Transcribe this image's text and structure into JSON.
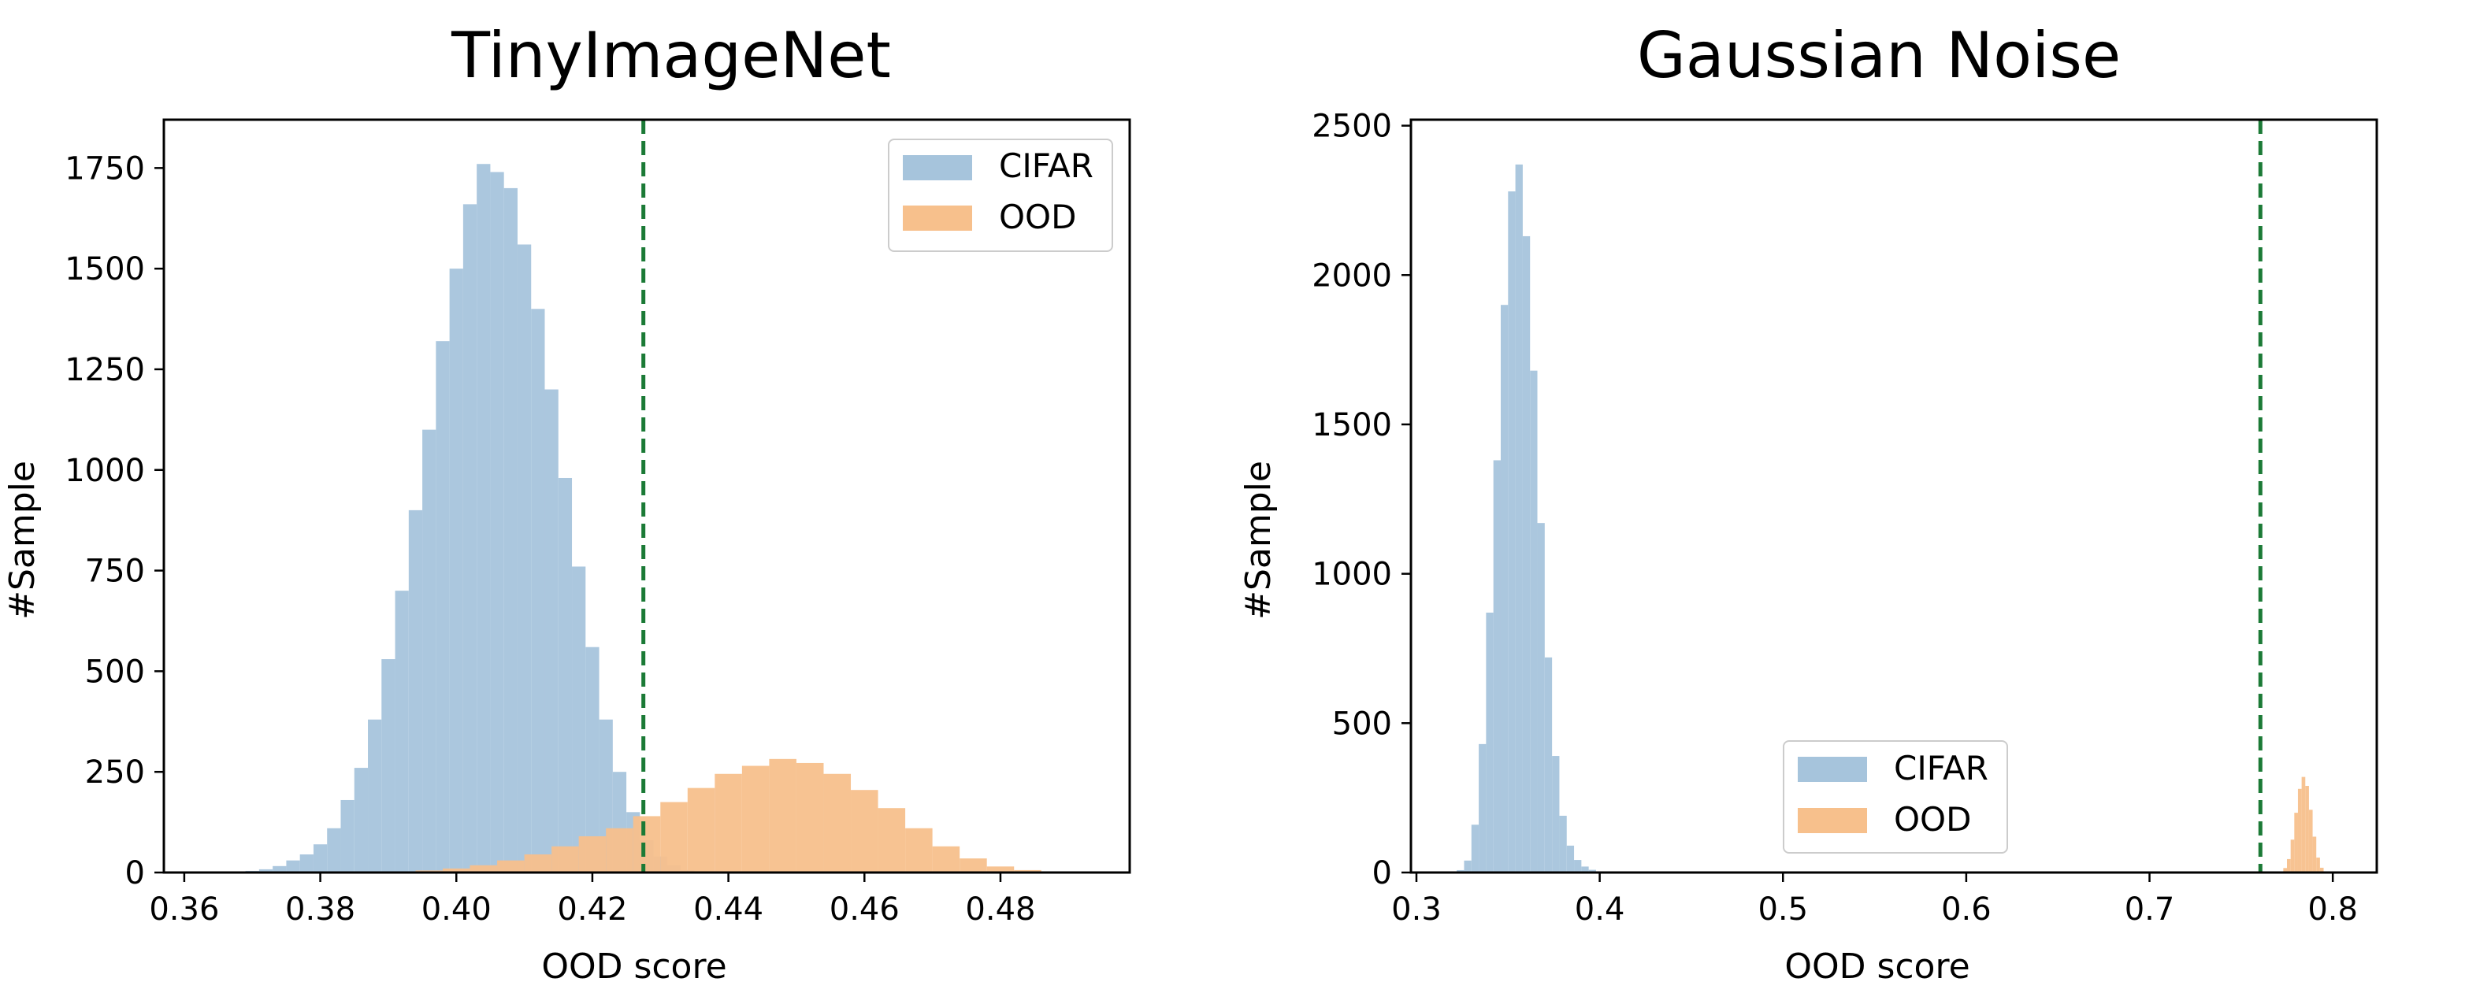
{
  "chart_data": [
    {
      "type": "histogram",
      "title": "TinyImageNet",
      "xlabel": "OOD score",
      "ylabel": "#Sample",
      "xlim": [
        0.357,
        0.499
      ],
      "ylim": [
        0,
        1870
      ],
      "xticks": [
        0.36,
        0.38,
        0.4,
        0.42,
        0.44,
        0.46,
        0.48
      ],
      "xtick_labels": [
        "0.36",
        "0.38",
        "0.40",
        "0.42",
        "0.44",
        "0.46",
        "0.48"
      ],
      "yticks": [
        0,
        250,
        500,
        750,
        1000,
        1250,
        1500,
        1750
      ],
      "ytick_labels": [
        "0",
        "250",
        "500",
        "750",
        "1000",
        "1250",
        "1500",
        "1750"
      ],
      "threshold": 0.4275,
      "legend_position": "top-right",
      "grid": false,
      "series": [
        {
          "name": "CIFAR",
          "color": "#a6c4dc",
          "bins": {
            "x": [
              0.366,
              0.368,
              0.37,
              0.372,
              0.374,
              0.376,
              0.378,
              0.38,
              0.382,
              0.384,
              0.386,
              0.388,
              0.39,
              0.392,
              0.394,
              0.396,
              0.398,
              0.4,
              0.402,
              0.404,
              0.406,
              0.408,
              0.41,
              0.412,
              0.414,
              0.416,
              0.418,
              0.42,
              0.422,
              0.424,
              0.426,
              0.428,
              0.43,
              0.432,
              0.434
            ],
            "y": [
              1,
              2,
              4,
              8,
              16,
              30,
              45,
              70,
              110,
              180,
              260,
              380,
              530,
              700,
              900,
              1100,
              1320,
              1500,
              1660,
              1760,
              1740,
              1700,
              1560,
              1400,
              1200,
              980,
              760,
              560,
              380,
              250,
              150,
              80,
              40,
              18,
              6
            ]
          }
        },
        {
          "name": "OOD",
          "color": "#f7c08c",
          "bins": {
            "x": [
              0.392,
              0.396,
              0.4,
              0.404,
              0.408,
              0.412,
              0.416,
              0.42,
              0.424,
              0.428,
              0.432,
              0.436,
              0.44,
              0.444,
              0.448,
              0.452,
              0.456,
              0.46,
              0.464,
              0.468,
              0.472,
              0.476,
              0.48,
              0.484,
              0.488
            ],
            "y": [
              2,
              5,
              10,
              18,
              30,
              45,
              65,
              90,
              110,
              140,
              175,
              210,
              245,
              265,
              282,
              272,
              245,
              205,
              160,
              110,
              65,
              35,
              15,
              6,
              2
            ]
          }
        }
      ]
    },
    {
      "type": "histogram",
      "title": "Gaussian Noise",
      "xlabel": "OOD score",
      "ylabel": "#Sample",
      "xlim": [
        0.297,
        0.824
      ],
      "ylim": [
        0,
        2520
      ],
      "xticks": [
        0.3,
        0.4,
        0.5,
        0.6,
        0.7,
        0.8
      ],
      "xtick_labels": [
        "0.3",
        "0.4",
        "0.5",
        "0.6",
        "0.7",
        "0.8"
      ],
      "yticks": [
        0,
        500,
        1000,
        1500,
        2000,
        2500
      ],
      "ytick_labels": [
        "0",
        "500",
        "1000",
        "1500",
        "2000",
        "2500"
      ],
      "threshold": 0.7605,
      "legend_position": "lower-center",
      "grid": false,
      "series": [
        {
          "name": "CIFAR",
          "color": "#a6c4dc",
          "bins": {
            "x": [
              0.324,
              0.328,
              0.332,
              0.336,
              0.34,
              0.344,
              0.348,
              0.352,
              0.356,
              0.36,
              0.364,
              0.368,
              0.372,
              0.376,
              0.38,
              0.384,
              0.388,
              0.392,
              0.396,
              0.4,
              0.404,
              0.408
            ],
            "y": [
              8,
              40,
              160,
              430,
              870,
              1380,
              1900,
              2280,
              2370,
              2130,
              1680,
              1170,
              720,
              390,
              190,
              90,
              42,
              20,
              9,
              4,
              2,
              1
            ]
          }
        },
        {
          "name": "OOD",
          "color": "#f7c08c",
          "bins": {
            "x": [
              0.772,
              0.774,
              0.776,
              0.778,
              0.78,
              0.782,
              0.784,
              0.786,
              0.788,
              0.79,
              0.792,
              0.794,
              0.796
            ],
            "y": [
              3,
              15,
              45,
              110,
              200,
              280,
              320,
              290,
              210,
              120,
              50,
              16,
              4
            ]
          }
        }
      ]
    }
  ]
}
